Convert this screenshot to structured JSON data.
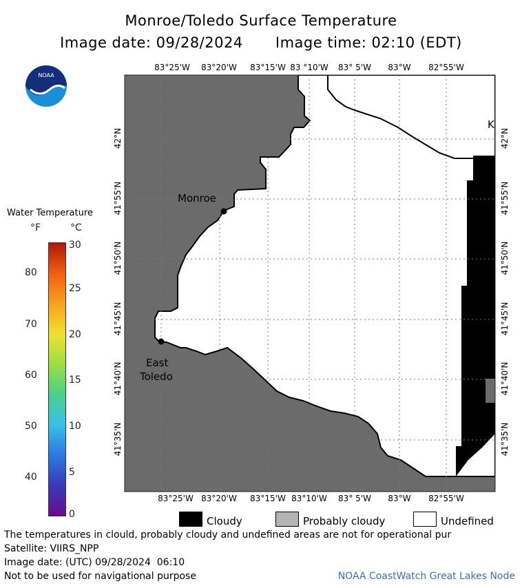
{
  "header": {
    "title": "Monroe/Toledo Surface Temperature",
    "image_date": "Image date: 09/28/2024",
    "image_time": "Image time: 02:10 (EDT)"
  },
  "logo": {
    "text": "NOAA",
    "icon": "noaa-logo"
  },
  "longitude_ticks_top": [
    "83°25'W",
    "83°20'W",
    "83°15'W",
    "83 °10'W",
    "83° 5'W",
    "83°W",
    "82°55'W"
  ],
  "longitude_ticks_bottom": [
    "83°25'W",
    "83°20'W",
    "83°15'W",
    "83°10'W",
    "83° 5'W",
    "83°W",
    "82°55'W"
  ],
  "latitude_ticks_left": [
    "42°N",
    "41°55'N",
    "41°50'N",
    "41°45'N",
    "41°40'N",
    "41°35'N"
  ],
  "latitude_ticks_right": [
    "42°N",
    "41°55'N",
    "41°50'N",
    "41°45'N",
    "41°40'N",
    "41°35'N"
  ],
  "places": {
    "monroe": "Monroe",
    "east_toledo_1": "East",
    "east_toledo_2": "Toledo",
    "edge_label": "K"
  },
  "color_scale": {
    "title": "Water Temperature",
    "unit_f": "°F",
    "unit_c": "°C",
    "f_ticks": [
      "80",
      "70",
      "60",
      "50",
      "40"
    ],
    "c_ticks": [
      "30",
      "25",
      "20",
      "15",
      "10",
      "5",
      "0"
    ],
    "colors": [
      "#6a0a8a",
      "#3a3ab8",
      "#2a7ae0",
      "#3ac0e8",
      "#4ad08a",
      "#9ae040",
      "#f0e030",
      "#f8a020",
      "#f06010",
      "#b01808"
    ]
  },
  "legend": {
    "cloudy": "Cloudy",
    "probably_cloudy": "Probably cloudy",
    "undefined": "Undefined"
  },
  "colors": {
    "land": "#6b6b6b",
    "cloud": "#000000",
    "undefined": "#ffffff",
    "probably_cloudy": "#b4b4b4"
  },
  "footer": {
    "note": "The temperatures in clould, probably cloudy and undefined areas are not for operational pur",
    "satellite": "Satellite: VIIRS_NPP",
    "utc_date": "Image date: (UTC) 09/28/2024  06:10",
    "nav": "Not to be used for navigational purpose",
    "credit": "NOAA CoastWatch Great Lakes Node"
  }
}
